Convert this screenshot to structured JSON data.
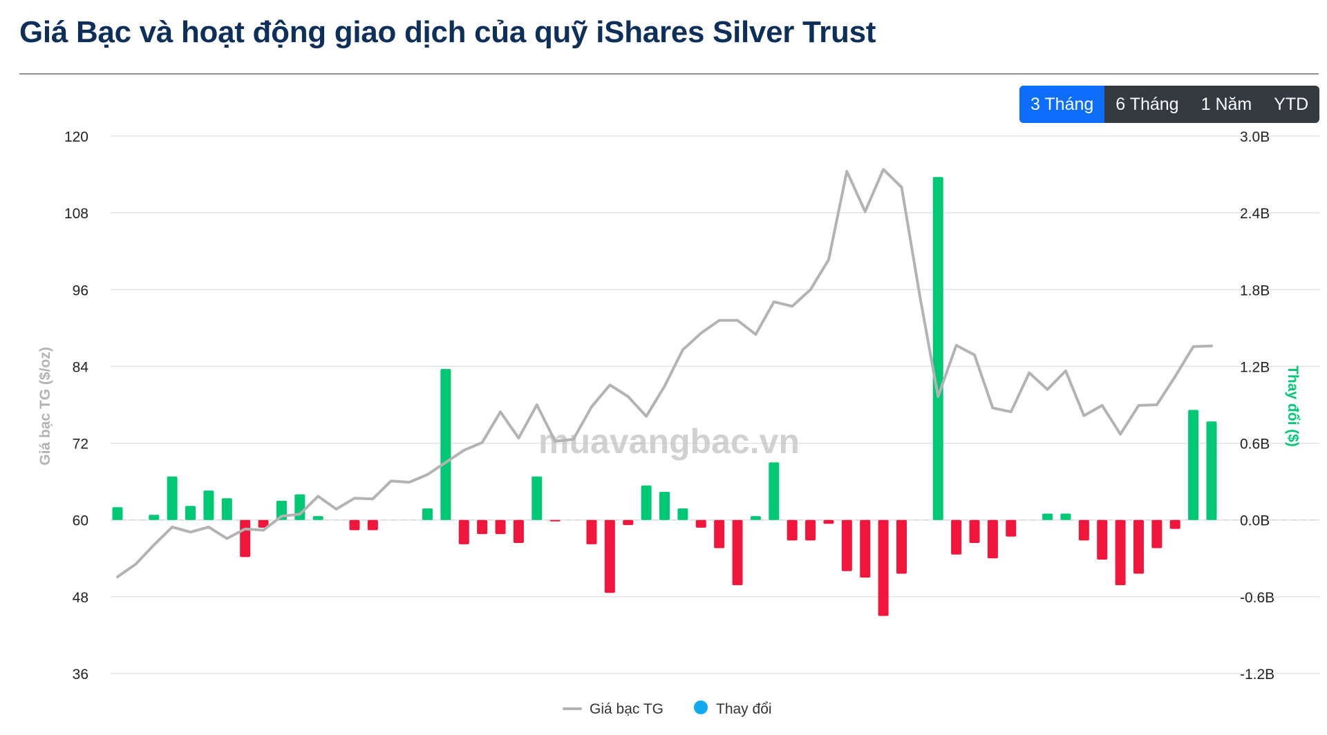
{
  "header": {
    "title": "Giá Bạc và hoạt động giao dịch của quỹ iShares Silver Trust"
  },
  "range_selector": {
    "options": [
      "3 Tháng",
      "6 Tháng",
      "1 Năm",
      "YTD"
    ],
    "active": "3 Tháng"
  },
  "watermark": "muavangbac.vn",
  "colors": {
    "price_line": "#b3b3b3",
    "bar_positive": "#00c875",
    "bar_negative": "#f0163c",
    "legend_change": "#13a9f0",
    "active_button": "#0d6efd",
    "title": "#0e2f5a"
  },
  "chart_data": {
    "type": "bar+line",
    "title": "Giá Bạc và hoạt động giao dịch của quỹ iShares Silver Trust",
    "y_left": {
      "label": "Giá bạc TG ($/oz)",
      "range": [
        36,
        120
      ],
      "ticks": [
        "120",
        "108",
        "96",
        "84",
        "72",
        "60",
        "48",
        "36"
      ]
    },
    "y_right": {
      "label": "Thay đổi ($)",
      "range": [
        -1.2,
        3.0
      ],
      "ticks": [
        "3.0B",
        "2.4B",
        "1.8B",
        "1.2B",
        "0.6B",
        "0.0B",
        "-0.6B",
        "-1.2B"
      ]
    },
    "legend": [
      "Giá bạc TG",
      "Thay đổi"
    ],
    "series": [
      {
        "name": "Giá bạc TG",
        "type": "line",
        "axis": "left",
        "values": [
          51.1,
          53.1,
          56.1,
          58.9,
          58.1,
          58.9,
          57.1,
          58.6,
          58.4,
          60.6,
          60.9,
          63.7,
          61.7,
          63.4,
          63.3,
          66.1,
          65.9,
          67.1,
          69.0,
          70.9,
          72.1,
          76.9,
          72.8,
          78.0,
          72.3,
          72.6,
          77.7,
          81.1,
          79.3,
          76.2,
          80.9,
          86.6,
          89.2,
          91.2,
          91.2,
          89.0,
          94.1,
          93.4,
          96.0,
          100.7,
          114.5,
          108.2,
          114.8,
          112.0,
          95.0,
          79.3,
          87.3,
          85.8,
          77.5,
          76.9,
          83.0,
          80.4,
          83.3,
          76.3,
          77.9,
          73.4,
          77.9,
          78.0,
          82.4,
          87.1,
          87.2
        ]
      },
      {
        "name": "Thay đổi",
        "type": "bar",
        "axis": "right",
        "unit": "B",
        "values": [
          0.1,
          0,
          0.04,
          0.34,
          0.11,
          0.23,
          0.17,
          -0.29,
          -0.06,
          0.15,
          0.2,
          0.03,
          0,
          -0.08,
          -0.08,
          0,
          0,
          0.09,
          1.18,
          -0.19,
          -0.11,
          -0.11,
          -0.18,
          0.34,
          -0.01,
          0,
          -0.19,
          -0.57,
          -0.04,
          0.27,
          0.22,
          0.09,
          -0.06,
          -0.22,
          -0.51,
          0.03,
          0.45,
          -0.16,
          -0.16,
          -0.03,
          -0.4,
          -0.45,
          -0.75,
          -0.42,
          0,
          2.68,
          -0.27,
          -0.18,
          -0.3,
          -0.13,
          0,
          0.05,
          0.05,
          -0.16,
          -0.31,
          -0.51,
          -0.42,
          -0.22,
          -0.07,
          0.86,
          0.77
        ]
      }
    ]
  }
}
